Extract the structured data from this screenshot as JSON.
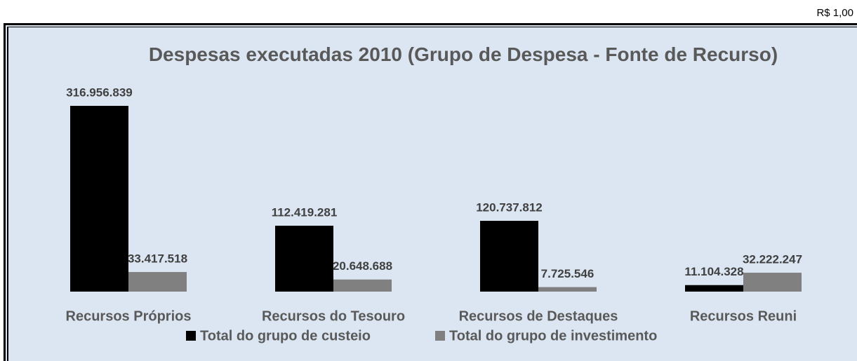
{
  "chart_data": {
    "type": "bar",
    "unit_label": "R$ 1,00",
    "title": "Despesas executadas 2010 (Grupo de Despesa - Fonte de Recurso)",
    "categories": [
      "Recursos Próprios",
      "Recursos do Tesouro",
      "Recursos de Destaques",
      "Recursos Reuni"
    ],
    "series": [
      {
        "name": "Total do grupo de custeio",
        "color": "#000000",
        "values": [
          316956839,
          112419281,
          120737812,
          11104328
        ],
        "value_labels": [
          "316.956.839",
          "112.419.281",
          "120.737.812",
          "11.104.328"
        ]
      },
      {
        "name": "Total do grupo de investimento",
        "color": "#808080",
        "values": [
          33417518,
          20648688,
          7725546,
          32222247
        ],
        "value_labels": [
          "33.417.518",
          "20.648.688",
          "7.725.546",
          "32.222.247"
        ]
      }
    ]
  }
}
